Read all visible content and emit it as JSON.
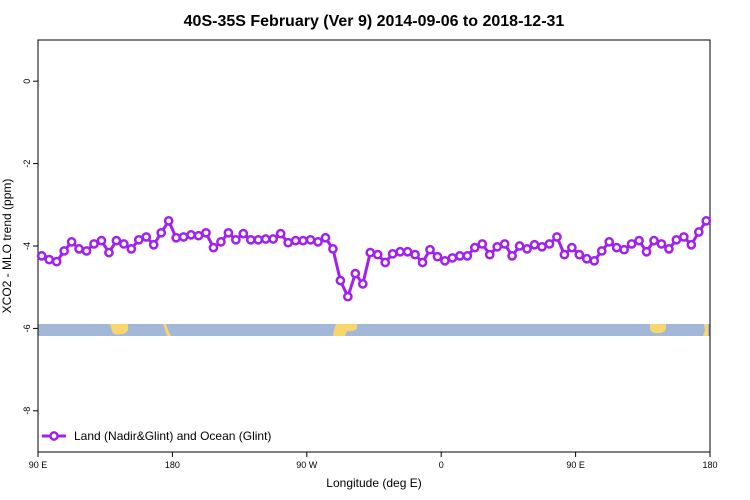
{
  "chart_data": {
    "type": "line",
    "title": "40S-35S February (Ver 9)   2014-09-06 to 2018-12-31",
    "x_label": "Longitude (deg E)",
    "y_label": "XCO2 - MLO trend (ppm)",
    "xlim": [
      90,
      540
    ],
    "ylim": [
      -9,
      1
    ],
    "xticks": [
      {
        "value": 90,
        "label": "90 E"
      },
      {
        "value": 180,
        "label": "180"
      },
      {
        "value": 270,
        "label": "90 W"
      },
      {
        "value": 360,
        "label": "0"
      },
      {
        "value": 450,
        "label": "90 E"
      },
      {
        "value": 540,
        "label": "180"
      }
    ],
    "yticks": [
      -8,
      -6,
      -4,
      -2,
      0
    ],
    "legend_position": "bottom-left",
    "x": [
      92.5,
      97.5,
      102.5,
      107.5,
      112.5,
      117.5,
      122.5,
      127.5,
      132.5,
      137.5,
      142.5,
      147.5,
      152.5,
      157.5,
      162.5,
      167.5,
      172.5,
      177.5,
      182.5,
      187.5,
      192.5,
      197.5,
      202.5,
      207.5,
      212.5,
      217.5,
      222.5,
      227.5,
      232.5,
      237.5,
      242.5,
      247.5,
      252.5,
      257.5,
      262.5,
      267.5,
      272.5,
      277.5,
      282.5,
      287.5,
      292.5,
      297.5,
      302.5,
      307.5,
      312.5,
      317.5,
      322.5,
      327.5,
      332.5,
      337.5,
      342.5,
      347.5,
      352.5,
      357.5,
      362.5,
      367.5,
      372.5,
      377.5,
      382.5,
      387.5,
      392.5,
      397.5,
      402.5,
      407.5,
      412.5,
      417.5,
      422.5,
      427.5,
      432.5,
      437.5,
      442.5,
      447.5,
      452.5,
      457.5,
      462.5,
      467.5,
      472.5,
      477.5,
      482.5,
      487.5,
      492.5,
      497.5,
      502.5,
      507.5,
      512.5,
      517.5,
      522.5,
      527.5,
      532.5,
      537.5
    ],
    "series": [
      {
        "name": "Land (Nadir&Glint) and Ocean (Glint)",
        "color": "#a020f0",
        "values": [
          -4.24,
          -4.33,
          -4.38,
          -4.12,
          -3.9,
          -4.07,
          -4.12,
          -3.95,
          -3.87,
          -4.16,
          -3.87,
          -3.95,
          -4.07,
          -3.85,
          -3.78,
          -3.97,
          -3.68,
          -3.39,
          -3.8,
          -3.78,
          -3.73,
          -3.75,
          -3.68,
          -4.04,
          -3.9,
          -3.68,
          -3.85,
          -3.7,
          -3.85,
          -3.85,
          -3.83,
          -3.83,
          -3.7,
          -3.92,
          -3.87,
          -3.87,
          -3.85,
          -3.9,
          -3.8,
          -4.07,
          -4.84,
          -5.23,
          -4.67,
          -4.92,
          -4.16,
          -4.21,
          -4.4,
          -4.19,
          -4.14,
          -4.14,
          -4.21,
          -4.4,
          -4.09,
          -4.26,
          -4.36,
          -4.29,
          -4.24,
          -4.24,
          -4.04,
          -3.95,
          -4.21,
          -4.02,
          -3.95,
          -4.24,
          -4.0,
          -4.07,
          -3.97,
          -4.02,
          -3.95,
          -3.78,
          -4.21,
          -4.04,
          -4.21,
          -4.31,
          -4.36,
          -4.12,
          -3.9,
          -4.04,
          -4.09,
          -3.95,
          -3.87,
          -4.14,
          -3.87,
          -3.95,
          -4.07,
          -3.85,
          -3.78,
          -3.97,
          -3.66,
          -3.39
        ]
      }
    ]
  }
}
